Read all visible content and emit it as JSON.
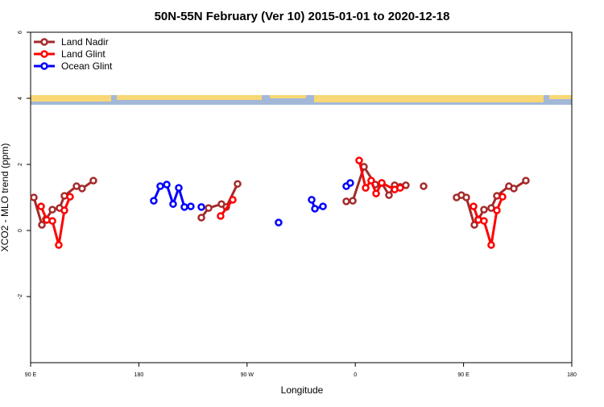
{
  "chart_data": {
    "type": "line",
    "title": "50N-55N February (Ver 10)   2015-01-01 to 2020-12-18",
    "x_label": "Longitude",
    "y_label": "XCO2 - MLO trend (ppm)",
    "xlim": [
      90,
      540
    ],
    "ylim": [
      -4,
      6
    ],
    "xticks": [
      {
        "value": 90,
        "label": "90 E"
      },
      180,
      {
        "value": 270,
        "label": "90 W"
      },
      {
        "value": 360,
        "label": "0"
      },
      {
        "value": 450,
        "label": "90 E"
      },
      {
        "value": 540,
        "label": "180"
      }
    ],
    "yticks": [
      -2,
      0,
      2,
      4,
      6
    ],
    "legend": "top-left",
    "series": [
      {
        "name": "Land Nadir",
        "color": "#a52a2a",
        "x": [
          92.7,
          99.4,
          102.7,
          108.1,
          114.1,
          118.1,
          128.2,
          132.8,
          142.2,
          null,
          232.0,
          238.0,
          248.7,
          252.7,
          262.1,
          null,
          352.5,
          357.9,
          367.2,
          376.6,
          382.0,
          388.0,
          392.7,
          397.3,
          402.0,
          null,
          416.8,
          null,
          444.2,
          448.2,
          452.3,
          459.0,
          462.3,
          467.0,
          473.0,
          477.7,
          487.7,
          491.8,
          501.8
        ],
        "values": [
          1.0,
          0.17,
          0.34,
          0.63,
          0.68,
          1.05,
          1.34,
          1.27,
          1.51,
          null,
          0.39,
          0.68,
          0.8,
          0.71,
          1.41,
          null,
          0.88,
          0.9,
          1.93,
          1.39,
          1.44,
          1.07,
          1.37,
          1.32,
          1.37,
          null,
          1.34,
          null,
          1.0,
          1.07,
          1.0,
          0.17,
          0.34,
          0.63,
          0.68,
          1.05,
          1.34,
          1.27,
          1.51
        ]
      },
      {
        "name": "Land Glint",
        "color": "#ff0000",
        "x": [
          98.7,
          103.4,
          108.1,
          113.4,
          118.1,
          122.8,
          null,
          248.0,
          258.1,
          null,
          363.2,
          368.6,
          373.2,
          377.3,
          382.0,
          392.7,
          397.3,
          null,
          458.3,
          462.3,
          467.0,
          473.0,
          477.7,
          482.4
        ],
        "values": [
          0.73,
          0.32,
          0.29,
          -0.44,
          0.61,
          1.02,
          null,
          0.44,
          0.93,
          null,
          2.12,
          1.29,
          1.51,
          1.12,
          1.44,
          1.24,
          1.29,
          null,
          0.73,
          0.32,
          0.29,
          -0.44,
          0.61,
          1.02
        ]
      },
      {
        "name": "Ocean Glint",
        "color": "#0000ff",
        "x": [
          192.4,
          197.8,
          203.2,
          208.5,
          213.2,
          217.9,
          223.2,
          null,
          232.0,
          null,
          296.2,
          null,
          323.7,
          326.4,
          333.1,
          null,
          352.5,
          355.8
        ],
        "values": [
          0.9,
          1.34,
          1.39,
          0.8,
          1.29,
          0.71,
          0.73,
          null,
          0.71,
          null,
          0.24,
          null,
          0.93,
          0.66,
          0.73,
          null,
          1.34,
          1.44
        ]
      }
    ]
  }
}
